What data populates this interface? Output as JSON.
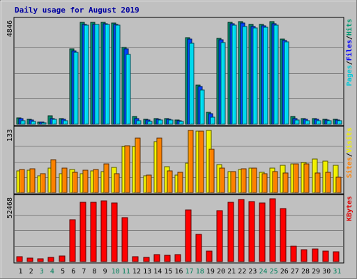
{
  "chart_data": {
    "type": "bar",
    "title": "Daily usage for August 2019",
    "categories": [
      "1",
      "2",
      "3",
      "4",
      "5",
      "6",
      "7",
      "8",
      "9",
      "10",
      "11",
      "12",
      "13",
      "14",
      "15",
      "16",
      "17",
      "18",
      "19",
      "20",
      "21",
      "22",
      "23",
      "24",
      "25",
      "26",
      "27",
      "28",
      "29",
      "30",
      "31"
    ],
    "weekend_days": [
      "3",
      "4",
      "10",
      "11",
      "17",
      "18",
      "24",
      "25",
      "31"
    ],
    "colors": {
      "background": "#c0c0c0",
      "panel": "#c0c0c0",
      "grid": "#808080",
      "title": "#0000a0",
      "weekday_label": "#000000",
      "weekend_label": "#00805c",
      "separator": "#000000"
    },
    "panels": [
      {
        "name": "hits-pages-files",
        "ymax_label": "4846",
        "ylim": [
          0,
          4846
        ],
        "legend": [
          {
            "text": "Pages",
            "color": "#00c8d8"
          },
          {
            "text": "Files",
            "color": "#0000ff"
          },
          {
            "text": "Hits",
            "color": "#009870"
          }
        ],
        "legend_sep": "/",
        "series": [
          {
            "name": "Hits",
            "color": "#008060",
            "values": [
              290,
              230,
              110,
              400,
              250,
              3550,
              4800,
              4800,
              4820,
              4790,
              3640,
              350,
              240,
              260,
              260,
              200,
              4090,
              1860,
              550,
              4070,
              4820,
              4840,
              4700,
              4720,
              4840,
              4020,
              360,
              260,
              250,
              230,
              240
            ]
          },
          {
            "name": "Files",
            "color": "#0040ff",
            "values": [
              270,
              210,
              100,
              260,
              230,
              3470,
              4710,
              4730,
              4760,
              4710,
              3550,
              260,
              200,
              220,
              240,
              180,
              4010,
              1780,
              500,
              4000,
              4740,
              4770,
              4620,
              4640,
              4760,
              3950,
              260,
              220,
              220,
              200,
              200
            ]
          },
          {
            "name": "Pages",
            "color": "#00d8f0",
            "values": [
              170,
              140,
              70,
              220,
              160,
              3400,
              4680,
              4700,
              4730,
              4690,
              3300,
              180,
              140,
              200,
              210,
              140,
              3820,
              1620,
              330,
              3860,
              4670,
              4620,
              4540,
              4570,
              4670,
              3890,
              210,
              180,
              160,
              150,
              170
            ]
          }
        ]
      },
      {
        "name": "sites-visits",
        "ymax_label": "133",
        "ylim": [
          0,
          133
        ],
        "legend": [
          {
            "text": "Sites",
            "color": "#ff8000"
          },
          {
            "text": "Visits",
            "color": "#f0f000"
          }
        ],
        "legend_sep": "/",
        "series": [
          {
            "name": "Visits",
            "color": "#f0f000",
            "values": [
              46,
              48,
              36,
              52,
              40,
              50,
              40,
              47,
              45,
              54,
              99,
              98,
              36,
              109,
              55,
              38,
              63,
              132,
              133,
              60,
              45,
              50,
              52,
              43,
              52,
              59,
              62,
              64,
              72,
              67,
              59
            ]
          },
          {
            "name": "Sites",
            "color": "#ff8000",
            "values": [
              50,
              51,
              41,
              70,
              53,
              44,
              48,
              50,
              61,
              40,
              100,
              117,
              38,
              117,
              47,
              43,
              133,
              132,
              92,
              53,
              45,
              51,
              52,
              40,
              45,
              42,
              61,
              61,
              42,
              43,
              33
            ]
          }
        ]
      },
      {
        "name": "kbytes",
        "ymax_label": "52468",
        "ylim": [
          0,
          52468
        ],
        "legend": [
          {
            "text": "KBytes",
            "color": "#e00000"
          }
        ],
        "legend_sep": "",
        "series": [
          {
            "name": "KBytes",
            "color": "#ff0000",
            "values": [
              4200,
              3200,
              2600,
              3600,
              4900,
              35000,
              49500,
              49500,
              50500,
              49000,
              36700,
              3900,
              3500,
              5900,
              5500,
              5700,
              42900,
              22700,
              8800,
              42700,
              49500,
              51700,
              50200,
              48700,
              52468,
              44100,
              13100,
              9900,
              10600,
              8600,
              8200
            ]
          }
        ]
      }
    ]
  }
}
